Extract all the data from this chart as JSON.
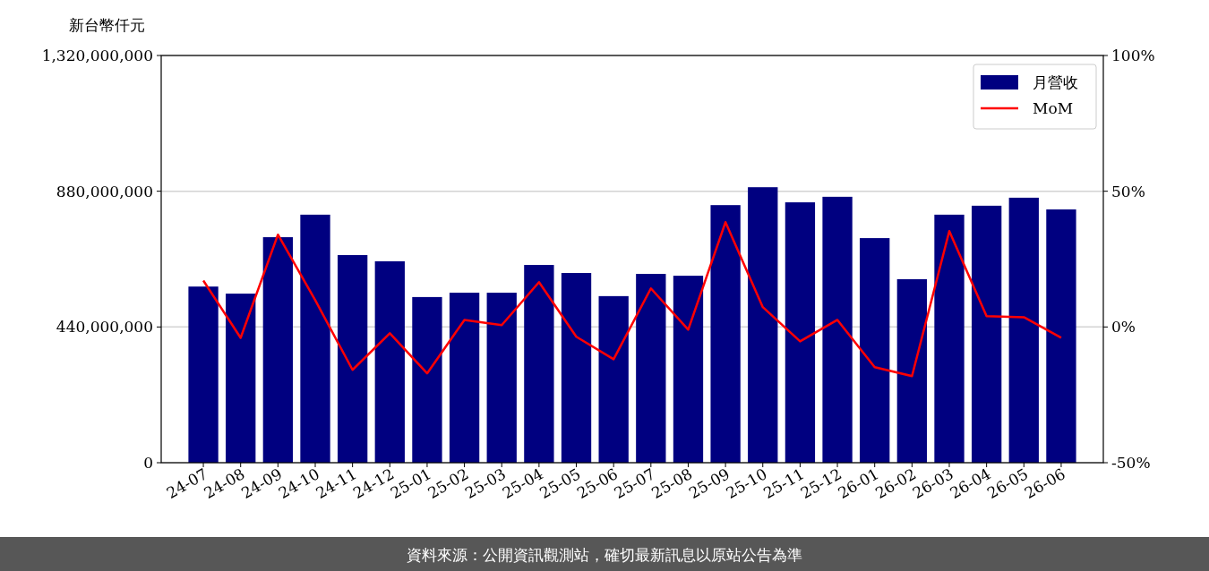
{
  "chart_data": {
    "type": "bar",
    "ylabel": "新台幣仟元",
    "categories": [
      "24-07",
      "24-08",
      "24-09",
      "24-10",
      "24-11",
      "24-12",
      "25-01",
      "25-02",
      "25-03",
      "25-04",
      "25-05",
      "25-06",
      "25-07",
      "25-08",
      "25-09",
      "25-10",
      "25-11",
      "25-12",
      "26-01",
      "26-02",
      "26-03",
      "26-04",
      "26-05",
      "26-06"
    ],
    "series": [
      {
        "name": "月營收",
        "color": "#000080",
        "values": [
          571000000,
          548000000,
          731000000,
          804000000,
          673000000,
          653000000,
          537000000,
          551000000,
          551000000,
          641000000,
          615000000,
          540000000,
          612000000,
          606000000,
          835000000,
          893000000,
          844000000,
          862000000,
          728000000,
          595000000,
          804000000,
          833000000,
          859000000,
          821000000
        ]
      },
      {
        "name": "MoM",
        "type": "line",
        "axis": "y2",
        "color": "#ff0000",
        "values": [
          17.1,
          -4.0,
          34.0,
          9.9,
          -15.8,
          -2.3,
          -17.1,
          2.6,
          0.7,
          16.5,
          -3.6,
          -11.9,
          14.2,
          -1.0,
          38.6,
          7.3,
          -5.3,
          2.6,
          -14.8,
          -18.1,
          35.3,
          4.0,
          3.6,
          -4.0
        ]
      }
    ],
    "ylim": [
      0,
      1320000000
    ],
    "yticks": [
      {
        "value": 0,
        "label": "0"
      },
      {
        "value": 440000000,
        "label": "440,000,000"
      },
      {
        "value": 880000000,
        "label": "880,000,000"
      },
      {
        "value": 1320000000,
        "label": "1,320,000,000"
      }
    ],
    "y2lim": [
      -50,
      100
    ],
    "y2ticks": [
      {
        "value": -50,
        "label": "-50%"
      },
      {
        "value": 0,
        "label": "0%"
      },
      {
        "value": 50,
        "label": "50%"
      },
      {
        "value": 100,
        "label": "100%"
      }
    ],
    "grid": "y",
    "legend": "top right",
    "annotations": [
      "資料來源：公開資訊觀測站，確切最新訊息以原站公告為準"
    ]
  }
}
